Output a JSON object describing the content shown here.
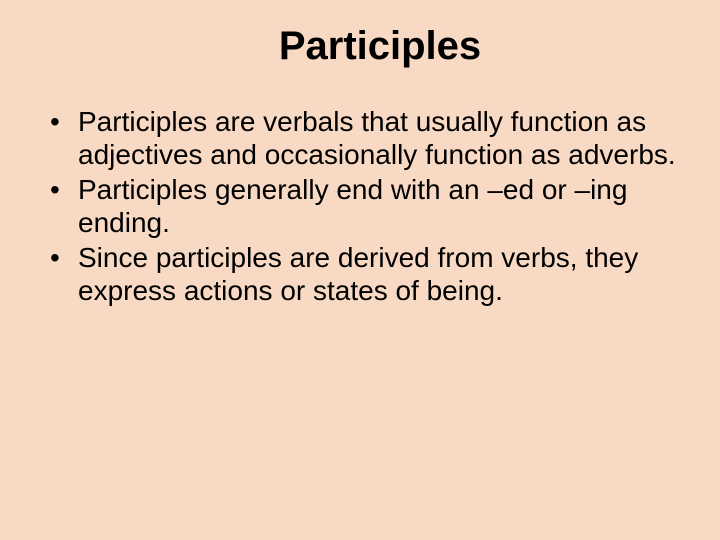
{
  "slide": {
    "title": "Participles",
    "title_fontsize": 40,
    "title_fontweight": "bold",
    "title_color": "#000000",
    "background_color": "#f8d9c4",
    "text_color": "#000000",
    "body_fontsize": 28,
    "bullets": [
      "Participles are verbals that usually function as adjectives and occasionally function as adverbs.",
      "Participles generally end with an –ed or –ing ending.",
      "Since participles are derived from verbs, they express actions or states of being."
    ]
  }
}
